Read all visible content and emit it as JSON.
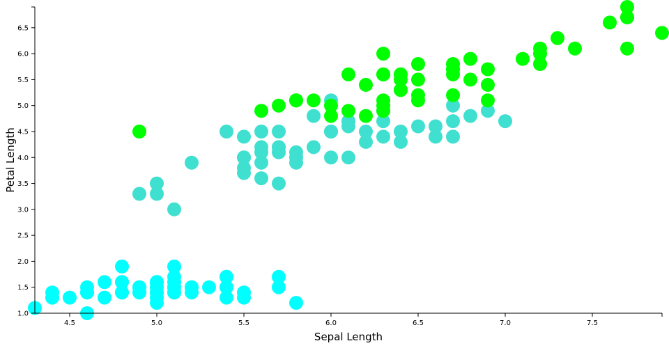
{
  "chart_data": {
    "type": "scatter",
    "xlabel": "Sepal Length",
    "ylabel": "Petal Length",
    "xlim": [
      4.3,
      7.9
    ],
    "ylim": [
      1.0,
      6.9
    ],
    "xticks": [
      "4.5",
      "5.0",
      "5.5",
      "6.0",
      "6.5",
      "7.0",
      "7.5"
    ],
    "yticks": [
      "1.0",
      "1.5",
      "2.0",
      "2.5",
      "3.0",
      "3.5",
      "4.0",
      "4.5",
      "5.0",
      "5.5",
      "6.0",
      "6.5"
    ],
    "legend": "none",
    "grid": false,
    "series": [
      {
        "color": "#00FFFF",
        "points": [
          [
            5.1,
            1.4
          ],
          [
            4.9,
            1.4
          ],
          [
            4.7,
            1.3
          ],
          [
            4.6,
            1.5
          ],
          [
            5.0,
            1.4
          ],
          [
            5.4,
            1.7
          ],
          [
            4.6,
            1.4
          ],
          [
            5.0,
            1.5
          ],
          [
            4.4,
            1.4
          ],
          [
            4.9,
            1.5
          ],
          [
            5.4,
            1.5
          ],
          [
            4.8,
            1.6
          ],
          [
            4.8,
            1.4
          ],
          [
            4.3,
            1.1
          ],
          [
            5.8,
            1.2
          ],
          [
            5.7,
            1.5
          ],
          [
            5.4,
            1.3
          ],
          [
            5.1,
            1.4
          ],
          [
            5.7,
            1.7
          ],
          [
            5.1,
            1.5
          ],
          [
            5.4,
            1.7
          ],
          [
            5.1,
            1.5
          ],
          [
            4.6,
            1.0
          ],
          [
            5.1,
            1.7
          ],
          [
            4.8,
            1.9
          ],
          [
            5.0,
            1.6
          ],
          [
            5.0,
            1.6
          ],
          [
            5.2,
            1.5
          ],
          [
            5.2,
            1.4
          ],
          [
            4.7,
            1.6
          ],
          [
            4.8,
            1.6
          ],
          [
            5.4,
            1.5
          ],
          [
            5.2,
            1.5
          ],
          [
            5.5,
            1.4
          ],
          [
            4.9,
            1.5
          ],
          [
            5.0,
            1.2
          ],
          [
            5.5,
            1.3
          ],
          [
            4.9,
            1.4
          ],
          [
            4.4,
            1.3
          ],
          [
            5.1,
            1.5
          ],
          [
            5.0,
            1.3
          ],
          [
            4.5,
            1.3
          ],
          [
            4.4,
            1.3
          ],
          [
            5.0,
            1.6
          ],
          [
            5.1,
            1.9
          ],
          [
            4.8,
            1.4
          ],
          [
            5.1,
            1.6
          ],
          [
            4.6,
            1.4
          ],
          [
            5.3,
            1.5
          ],
          [
            5.0,
            1.4
          ]
        ]
      },
      {
        "color": "#40E0D0",
        "points": [
          [
            7.0,
            4.7
          ],
          [
            6.4,
            4.5
          ],
          [
            6.9,
            4.9
          ],
          [
            5.5,
            4.0
          ],
          [
            6.5,
            4.6
          ],
          [
            5.7,
            4.5
          ],
          [
            6.3,
            4.7
          ],
          [
            4.9,
            3.3
          ],
          [
            6.6,
            4.6
          ],
          [
            5.2,
            3.9
          ],
          [
            5.0,
            3.5
          ],
          [
            5.9,
            4.2
          ],
          [
            6.0,
            4.0
          ],
          [
            6.1,
            4.7
          ],
          [
            5.6,
            3.6
          ],
          [
            6.7,
            4.4
          ],
          [
            5.6,
            4.5
          ],
          [
            5.8,
            4.1
          ],
          [
            6.2,
            4.5
          ],
          [
            5.6,
            3.9
          ],
          [
            5.9,
            4.8
          ],
          [
            6.1,
            4.0
          ],
          [
            6.3,
            4.9
          ],
          [
            6.1,
            4.7
          ],
          [
            6.4,
            4.3
          ],
          [
            6.6,
            4.4
          ],
          [
            6.8,
            4.8
          ],
          [
            6.7,
            5.0
          ],
          [
            6.0,
            4.5
          ],
          [
            5.7,
            3.5
          ],
          [
            5.5,
            3.8
          ],
          [
            5.5,
            3.7
          ],
          [
            5.8,
            3.9
          ],
          [
            6.0,
            5.1
          ],
          [
            5.4,
            4.5
          ],
          [
            6.0,
            4.5
          ],
          [
            6.7,
            4.7
          ],
          [
            6.3,
            4.4
          ],
          [
            5.6,
            4.1
          ],
          [
            5.5,
            4.0
          ],
          [
            5.5,
            4.4
          ],
          [
            6.1,
            4.6
          ],
          [
            5.8,
            4.0
          ],
          [
            5.0,
            3.3
          ],
          [
            5.6,
            4.2
          ],
          [
            5.7,
            4.2
          ],
          [
            5.7,
            4.2
          ],
          [
            6.2,
            4.3
          ],
          [
            5.1,
            3.0
          ],
          [
            5.7,
            4.1
          ]
        ]
      },
      {
        "color": "#00FF00",
        "points": [
          [
            6.3,
            6.0
          ],
          [
            5.8,
            5.1
          ],
          [
            7.1,
            5.9
          ],
          [
            6.3,
            5.6
          ],
          [
            6.5,
            5.8
          ],
          [
            7.6,
            6.6
          ],
          [
            4.9,
            4.5
          ],
          [
            7.3,
            6.3
          ],
          [
            6.7,
            5.8
          ],
          [
            7.2,
            6.1
          ],
          [
            6.5,
            5.1
          ],
          [
            6.4,
            5.3
          ],
          [
            6.8,
            5.5
          ],
          [
            5.7,
            5.0
          ],
          [
            5.8,
            5.1
          ],
          [
            6.4,
            5.3
          ],
          [
            6.5,
            5.5
          ],
          [
            7.7,
            6.7
          ],
          [
            7.7,
            6.9
          ],
          [
            6.0,
            5.0
          ],
          [
            6.9,
            5.7
          ],
          [
            5.6,
            4.9
          ],
          [
            7.7,
            6.7
          ],
          [
            6.3,
            4.9
          ],
          [
            6.7,
            5.7
          ],
          [
            7.2,
            6.0
          ],
          [
            6.2,
            4.8
          ],
          [
            6.1,
            4.9
          ],
          [
            6.4,
            5.6
          ],
          [
            7.2,
            5.8
          ],
          [
            7.4,
            6.1
          ],
          [
            7.9,
            6.4
          ],
          [
            6.4,
            5.6
          ],
          [
            6.3,
            5.1
          ],
          [
            6.1,
            5.6
          ],
          [
            7.7,
            6.1
          ],
          [
            6.3,
            5.6
          ],
          [
            6.4,
            5.5
          ],
          [
            6.0,
            4.8
          ],
          [
            6.9,
            5.4
          ],
          [
            6.7,
            5.6
          ],
          [
            6.9,
            5.1
          ],
          [
            5.8,
            5.1
          ],
          [
            6.8,
            5.9
          ],
          [
            6.7,
            5.7
          ],
          [
            6.7,
            5.2
          ],
          [
            6.3,
            5.0
          ],
          [
            6.5,
            5.2
          ],
          [
            6.2,
            5.4
          ],
          [
            5.9,
            5.1
          ]
        ]
      }
    ]
  }
}
